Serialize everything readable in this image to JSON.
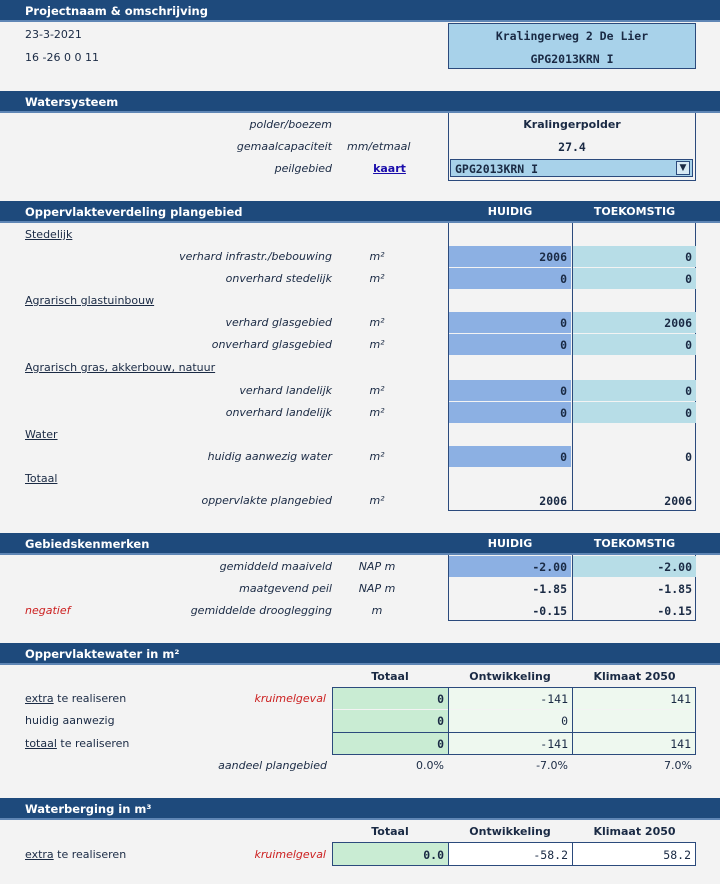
{
  "project": {
    "header": "Projectnaam & omschrijving",
    "date": "23-3-2021",
    "code": "16 -26 0 0 11",
    "name": "Kralingerweg 2 De Lier",
    "id": "GPG2013KRN I"
  },
  "watersysteem": {
    "header": "Watersysteem",
    "rows": [
      {
        "label": "polder/boezem",
        "unit": "",
        "value": "Kralingerpolder"
      },
      {
        "label": "gemaalcapaciteit",
        "unit": "mm/etmaal",
        "value": "27.4"
      },
      {
        "label": "peilgebied",
        "unit": "",
        "link": "kaart"
      }
    ],
    "select_value": "GPG2013KRN I"
  },
  "oppervlakte": {
    "header": "Oppervlakteverdeling plangebied",
    "col_huidig": "HUIDIG",
    "col_toekomstig": "TOEKOMSTIG",
    "categories": [
      "Stedelijk",
      "Agrarisch glastuinbouw",
      "Agrarisch gras, akkerbouw, natuur",
      "Water",
      "Totaal"
    ],
    "rows": [
      {
        "label": "verhard infrastr./bebouwing",
        "unit": "m²",
        "huidig": "2006",
        "toekomstig": "0"
      },
      {
        "label": "onverhard stedelijk",
        "unit": "m²",
        "huidig": "0",
        "toekomstig": "0"
      },
      {
        "label": "verhard glasgebied",
        "unit": "m²",
        "huidig": "0",
        "toekomstig": "2006"
      },
      {
        "label": "onverhard glasgebied",
        "unit": "m²",
        "huidig": "0",
        "toekomstig": "0"
      },
      {
        "label": "verhard landelijk",
        "unit": "m²",
        "huidig": "0",
        "toekomstig": "0"
      },
      {
        "label": "onverhard landelijk",
        "unit": "m²",
        "huidig": "0",
        "toekomstig": "0"
      },
      {
        "label": "huidig aanwezig water",
        "unit": "m²",
        "huidig": "0",
        "toekomstig": "0"
      },
      {
        "label": "oppervlakte plangebied",
        "unit": "m²",
        "huidig": "2006",
        "toekomstig": "2006"
      }
    ]
  },
  "gebied": {
    "header": "Gebiedskenmerken",
    "col_huidig": "HUIDIG",
    "col_toekomstig": "TOEKOMSTIG",
    "negatief": "negatief",
    "rows": [
      {
        "label": "gemiddeld maaiveld",
        "unit": "NAP m",
        "huidig": "-2.00",
        "toekomstig": "-2.00"
      },
      {
        "label": "maatgevend peil",
        "unit": "NAP m",
        "huidig": "-1.85",
        "toekomstig": "-1.85"
      },
      {
        "label": "gemiddelde drooglegging",
        "unit": "m",
        "huidig": "-0.15",
        "toekomstig": "-0.15"
      }
    ]
  },
  "oppwater": {
    "header": "Oppervlaktewater in m²",
    "cols": [
      "Totaal",
      "Ontwikkeling",
      "Klimaat 2050"
    ],
    "kruimel": "kruimelgeval",
    "rows": [
      {
        "pre": "extra",
        "post": " te realiseren",
        "totaal": "0",
        "ontw": "-141",
        "klim": "141"
      },
      {
        "pre": "",
        "post": "huidig aanwezig",
        "totaal": "0",
        "ontw": "0",
        "klim": ""
      },
      {
        "pre": "totaal",
        "post": " te realiseren",
        "totaal": "0",
        "ontw": "-141",
        "klim": "141"
      }
    ],
    "aandeel": {
      "label": "aandeel plangebied",
      "totaal": "0.0%",
      "ontw": "-7.0%",
      "klim": "7.0%"
    }
  },
  "waterberging": {
    "header": "Waterberging in m³",
    "cols": [
      "Totaal",
      "Ontwikkeling",
      "Klimaat 2050"
    ],
    "kruimel": "kruimelgeval",
    "row": {
      "pre": "extra",
      "post": " te realiseren",
      "totaal": "0.0",
      "ontw": "-58.2",
      "klim": "58.2"
    }
  }
}
